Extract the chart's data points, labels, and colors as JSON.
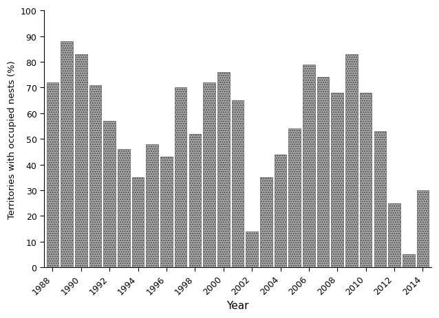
{
  "years": [
    1988,
    1989,
    1990,
    1991,
    1992,
    1993,
    1994,
    1995,
    1996,
    1997,
    1998,
    1999,
    2000,
    2001,
    2002,
    2003,
    2004,
    2005,
    2006,
    2007,
    2008,
    2009,
    2010,
    2011,
    2012,
    2013,
    2014
  ],
  "values": [
    72,
    88,
    83,
    71,
    57,
    46,
    35,
    48,
    43,
    70,
    52,
    72,
    76,
    65,
    14,
    35,
    44,
    54,
    79,
    74,
    68,
    83,
    68,
    53,
    25,
    5,
    30
  ],
  "bar_color": "#aaaaaa",
  "bar_edgecolor": "#444444",
  "hatch": ".....",
  "xlabel": "Year",
  "ylabel": "Territories with occupied nests (%)",
  "ylim": [
    0,
    100
  ],
  "yticks": [
    0,
    10,
    20,
    30,
    40,
    50,
    60,
    70,
    80,
    90,
    100
  ],
  "background_color": "#ffffff",
  "figsize": [
    6.38,
    4.64
  ],
  "dpi": 100
}
